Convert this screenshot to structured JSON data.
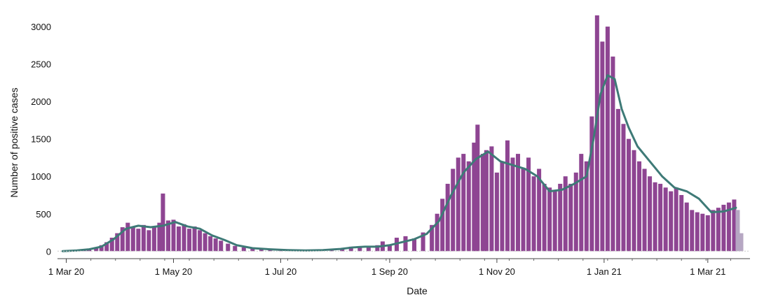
{
  "chart_data": {
    "type": "bar",
    "xlabel": "Date",
    "ylabel": "Number of positive cases",
    "x_range": [
      "2020-02-25",
      "2021-03-25"
    ],
    "ylim": [
      -100,
      3150
    ],
    "y_ticks": [
      0,
      500,
      1000,
      1500,
      2000,
      2500,
      3000
    ],
    "x_ticks": [
      {
        "date": "2020-03-01",
        "label": "1 Mar 20"
      },
      {
        "date": "2020-05-01",
        "label": "1 May 20"
      },
      {
        "date": "2020-07-01",
        "label": "1 Jul 20"
      },
      {
        "date": "2020-09-01",
        "label": "1 Sep 20"
      },
      {
        "date": "2020-11-01",
        "label": "1 Nov 20"
      },
      {
        "date": "2021-01-01",
        "label": "1 Jan 21"
      },
      {
        "date": "2021-03-01",
        "label": "1 Mar 21"
      }
    ],
    "x_minor_tick_interval_days": 14,
    "bar_color": "#8e4592",
    "incomplete_bar_color": "#b6a7c3",
    "line_color": "#3e7a77",
    "grid": false,
    "series": [
      {
        "type": "bar",
        "points": [
          [
            "2020-02-28",
            2
          ],
          [
            "2020-03-03",
            4
          ],
          [
            "2020-03-07",
            10
          ],
          [
            "2020-03-11",
            20
          ],
          [
            "2020-03-14",
            35
          ],
          [
            "2020-03-18",
            50
          ],
          [
            "2020-03-21",
            80
          ],
          [
            "2020-03-24",
            120
          ],
          [
            "2020-03-27",
            180
          ],
          [
            "2020-03-30",
            240
          ],
          [
            "2020-04-02",
            320
          ],
          [
            "2020-04-05",
            380
          ],
          [
            "2020-04-08",
            330
          ],
          [
            "2020-04-11",
            300
          ],
          [
            "2020-04-14",
            350
          ],
          [
            "2020-04-17",
            280
          ],
          [
            "2020-04-20",
            330
          ],
          [
            "2020-04-23",
            380
          ],
          [
            "2020-04-25",
            770
          ],
          [
            "2020-04-28",
            410
          ],
          [
            "2020-05-01",
            420
          ],
          [
            "2020-05-04",
            330
          ],
          [
            "2020-05-07",
            360
          ],
          [
            "2020-05-10",
            300
          ],
          [
            "2020-05-13",
            330
          ],
          [
            "2020-05-16",
            280
          ],
          [
            "2020-05-19",
            240
          ],
          [
            "2020-05-22",
            200
          ],
          [
            "2020-05-25",
            170
          ],
          [
            "2020-05-28",
            140
          ],
          [
            "2020-06-01",
            100
          ],
          [
            "2020-06-05",
            70
          ],
          [
            "2020-06-10",
            50
          ],
          [
            "2020-06-15",
            35
          ],
          [
            "2020-06-20",
            25
          ],
          [
            "2020-06-25",
            20
          ],
          [
            "2020-07-01",
            12
          ],
          [
            "2020-07-10",
            8
          ],
          [
            "2020-07-20",
            8
          ],
          [
            "2020-07-30",
            15
          ],
          [
            "2020-08-05",
            40
          ],
          [
            "2020-08-10",
            60
          ],
          [
            "2020-08-15",
            55
          ],
          [
            "2020-08-20",
            60
          ],
          [
            "2020-08-25",
            80
          ],
          [
            "2020-08-28",
            130
          ],
          [
            "2020-09-01",
            90
          ],
          [
            "2020-09-05",
            180
          ],
          [
            "2020-09-10",
            200
          ],
          [
            "2020-09-15",
            170
          ],
          [
            "2020-09-20",
            250
          ],
          [
            "2020-09-25",
            350
          ],
          [
            "2020-09-28",
            500
          ],
          [
            "2020-10-01",
            700
          ],
          [
            "2020-10-04",
            900
          ],
          [
            "2020-10-07",
            1100
          ],
          [
            "2020-10-10",
            1250
          ],
          [
            "2020-10-13",
            1300
          ],
          [
            "2020-10-16",
            1200
          ],
          [
            "2020-10-19",
            1450
          ],
          [
            "2020-10-21",
            1690
          ],
          [
            "2020-10-24",
            1300
          ],
          [
            "2020-10-26",
            1350
          ],
          [
            "2020-10-29",
            1400
          ],
          [
            "2020-11-01",
            1050
          ],
          [
            "2020-11-04",
            1200
          ],
          [
            "2020-11-07",
            1480
          ],
          [
            "2020-11-10",
            1250
          ],
          [
            "2020-11-13",
            1300
          ],
          [
            "2020-11-16",
            1100
          ],
          [
            "2020-11-19",
            1250
          ],
          [
            "2020-11-22",
            1000
          ],
          [
            "2020-11-25",
            1100
          ],
          [
            "2020-11-28",
            900
          ],
          [
            "2020-12-01",
            850
          ],
          [
            "2020-12-04",
            800
          ],
          [
            "2020-12-07",
            900
          ],
          [
            "2020-12-10",
            1000
          ],
          [
            "2020-12-13",
            900
          ],
          [
            "2020-12-16",
            1050
          ],
          [
            "2020-12-19",
            1300
          ],
          [
            "2020-12-22",
            1200
          ],
          [
            "2020-12-25",
            1800
          ],
          [
            "2020-12-28",
            3150
          ],
          [
            "2020-12-31",
            2800
          ],
          [
            "2021-01-03",
            3000
          ],
          [
            "2021-01-06",
            2600
          ],
          [
            "2021-01-09",
            1900
          ],
          [
            "2021-01-12",
            1700
          ],
          [
            "2021-01-15",
            1500
          ],
          [
            "2021-01-18",
            1350
          ],
          [
            "2021-01-21",
            1200
          ],
          [
            "2021-01-24",
            1100
          ],
          [
            "2021-01-27",
            1000
          ],
          [
            "2021-01-30",
            920
          ],
          [
            "2021-02-02",
            900
          ],
          [
            "2021-02-05",
            850
          ],
          [
            "2021-02-08",
            800
          ],
          [
            "2021-02-11",
            850
          ],
          [
            "2021-02-14",
            750
          ],
          [
            "2021-02-17",
            650
          ],
          [
            "2021-02-20",
            550
          ],
          [
            "2021-02-23",
            520
          ],
          [
            "2021-02-26",
            500
          ],
          [
            "2021-03-01",
            480
          ],
          [
            "2021-03-04",
            550
          ],
          [
            "2021-03-07",
            580
          ],
          [
            "2021-03-10",
            620
          ],
          [
            "2021-03-13",
            650
          ],
          [
            "2021-03-16",
            690
          ],
          [
            "2021-03-18",
            550
          ],
          [
            "2021-03-20",
            240
          ]
        ]
      },
      {
        "type": "line",
        "points": [
          [
            "2020-02-28",
            0
          ],
          [
            "2020-03-07",
            10
          ],
          [
            "2020-03-14",
            25
          ],
          [
            "2020-03-21",
            60
          ],
          [
            "2020-03-28",
            160
          ],
          [
            "2020-04-04",
            300
          ],
          [
            "2020-04-11",
            340
          ],
          [
            "2020-04-18",
            320
          ],
          [
            "2020-04-25",
            340
          ],
          [
            "2020-05-02",
            390
          ],
          [
            "2020-05-09",
            330
          ],
          [
            "2020-05-16",
            300
          ],
          [
            "2020-05-23",
            210
          ],
          [
            "2020-05-30",
            150
          ],
          [
            "2020-06-06",
            80
          ],
          [
            "2020-06-15",
            40
          ],
          [
            "2020-06-25",
            25
          ],
          [
            "2020-07-05",
            15
          ],
          [
            "2020-07-15",
            10
          ],
          [
            "2020-07-25",
            15
          ],
          [
            "2020-08-04",
            30
          ],
          [
            "2020-08-11",
            50
          ],
          [
            "2020-08-18",
            60
          ],
          [
            "2020-08-25",
            60
          ],
          [
            "2020-09-01",
            80
          ],
          [
            "2020-09-08",
            120
          ],
          [
            "2020-09-15",
            160
          ],
          [
            "2020-09-22",
            230
          ],
          [
            "2020-09-29",
            400
          ],
          [
            "2020-10-06",
            750
          ],
          [
            "2020-10-13",
            1050
          ],
          [
            "2020-10-20",
            1230
          ],
          [
            "2020-10-27",
            1330
          ],
          [
            "2020-11-03",
            1200
          ],
          [
            "2020-11-10",
            1150
          ],
          [
            "2020-11-17",
            1100
          ],
          [
            "2020-11-24",
            1000
          ],
          [
            "2020-12-01",
            800
          ],
          [
            "2020-12-08",
            820
          ],
          [
            "2020-12-15",
            900
          ],
          [
            "2020-12-22",
            1000
          ],
          [
            "2020-12-26",
            1500
          ],
          [
            "2020-12-30",
            2100
          ],
          [
            "2021-01-03",
            2350
          ],
          [
            "2021-01-07",
            2300
          ],
          [
            "2021-01-11",
            1900
          ],
          [
            "2021-01-15",
            1650
          ],
          [
            "2021-01-20",
            1400
          ],
          [
            "2021-01-27",
            1200
          ],
          [
            "2021-02-03",
            1000
          ],
          [
            "2021-02-10",
            850
          ],
          [
            "2021-02-17",
            800
          ],
          [
            "2021-02-24",
            700
          ],
          [
            "2021-03-03",
            520
          ],
          [
            "2021-03-10",
            530
          ],
          [
            "2021-03-17",
            580
          ]
        ]
      }
    ]
  }
}
